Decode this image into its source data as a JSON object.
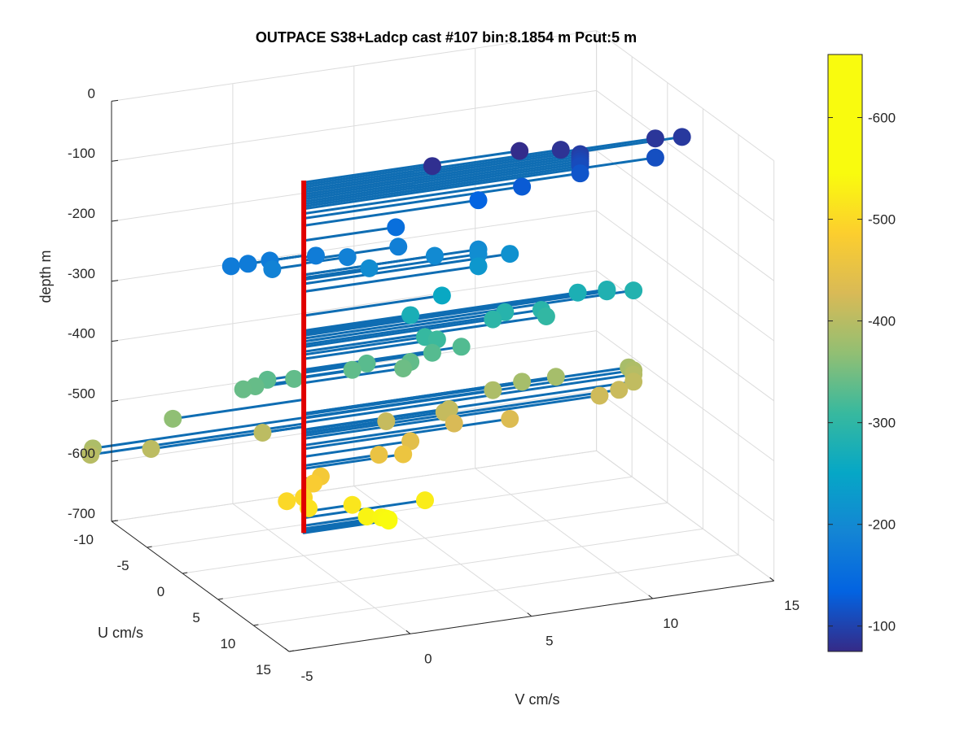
{
  "chart_data": {
    "type": "scatter",
    "title": "OUTPACE S38+Ladcp cast #107 bin:8.1854 m  Pcut:5 m",
    "xlabel": "U cm/s",
    "ylabel": "V cm/s",
    "zlabel": "depth m",
    "xlim": [
      -10,
      15
    ],
    "ylim": [
      -5,
      15
    ],
    "zlim": [
      -700,
      0
    ],
    "u_ticks": [
      "-10",
      "-5",
      "0",
      "5",
      "10",
      "15"
    ],
    "v_ticks": [
      "-5",
      "0",
      "5",
      "10",
      "15"
    ],
    "z_ticks": [
      "0",
      "-100",
      "-200",
      "-300",
      "-400",
      "-500",
      "-600",
      "-700"
    ],
    "colorbar": {
      "ticks": [
        "-100",
        "-200",
        "-300",
        "-400",
        "-500",
        "-600"
      ],
      "range": [
        -662,
        -75
      ]
    },
    "grid": true,
    "profile": {
      "depth_top": -75,
      "depth_bottom": -662,
      "color": "#e00000"
    },
    "vectors": [
      {
        "depth": -78,
        "u": 0,
        "v": 8.9
      },
      {
        "depth": -82,
        "u": 0,
        "v": 5.3
      },
      {
        "depth": -86,
        "u": 0,
        "v": 10.6
      },
      {
        "depth": -90,
        "u": 0,
        "v": 14.5
      },
      {
        "depth": -94,
        "u": 0,
        "v": 15.6
      },
      {
        "depth": -98,
        "u": 0,
        "v": 11.4
      },
      {
        "depth": -102,
        "u": 0,
        "v": 11.4
      },
      {
        "depth": -106,
        "u": 0,
        "v": 11.4
      },
      {
        "depth": -110,
        "u": 0,
        "v": 11.4
      },
      {
        "depth": -114,
        "u": 0,
        "v": 11.4
      },
      {
        "depth": -118,
        "u": 0,
        "v": 11.4
      },
      {
        "depth": -122,
        "u": 0,
        "v": 14.5
      },
      {
        "depth": -130,
        "u": 0,
        "v": 11.4
      },
      {
        "depth": -138,
        "u": 0,
        "v": 9.0
      },
      {
        "depth": -150,
        "u": 0,
        "v": 7.2
      },
      {
        "depth": -175,
        "u": 0,
        "v": 3.8
      },
      {
        "depth": -200,
        "u": 0,
        "v": -3.0
      },
      {
        "depth": -200,
        "u": 0,
        "v": -2.3
      },
      {
        "depth": -200,
        "u": 0,
        "v": -1.4
      },
      {
        "depth": -203,
        "u": 0,
        "v": 0.5
      },
      {
        "depth": -208,
        "u": 0,
        "v": 3.9
      },
      {
        "depth": -213,
        "u": 0,
        "v": 1.8
      },
      {
        "depth": -215,
        "u": 0,
        "v": -1.3
      },
      {
        "depth": -232,
        "u": 0,
        "v": 5.4
      },
      {
        "depth": -232,
        "u": 0,
        "v": 7.2
      },
      {
        "depth": -237,
        "u": 0,
        "v": 2.7
      },
      {
        "depth": -240,
        "u": 0,
        "v": 7.2
      },
      {
        "depth": -247,
        "u": 0,
        "v": 8.5
      },
      {
        "depth": -260,
        "u": 0,
        "v": 7.2
      },
      {
        "depth": -300,
        "u": 0,
        "v": 5.7
      },
      {
        "depth": -325,
        "u": 0,
        "v": 4.4
      },
      {
        "depth": -328,
        "u": 0,
        "v": 11.3
      },
      {
        "depth": -330,
        "u": 0,
        "v": 12.5
      },
      {
        "depth": -333,
        "u": 0,
        "v": 12.5
      },
      {
        "depth": -338,
        "u": 0,
        "v": 13.6
      },
      {
        "depth": -343,
        "u": 0,
        "v": 8.3
      },
      {
        "depth": -348,
        "u": 0,
        "v": 9.8
      },
      {
        "depth": -352,
        "u": 0,
        "v": 7.8
      },
      {
        "depth": -360,
        "u": 0,
        "v": 10.0
      },
      {
        "depth": -365,
        "u": 0,
        "v": 5.0
      },
      {
        "depth": -372,
        "u": 0,
        "v": 5.5
      },
      {
        "depth": -390,
        "u": 0,
        "v": 6.5
      },
      {
        "depth": -393,
        "u": 0,
        "v": 5.3
      },
      {
        "depth": -395,
        "u": 0,
        "v": 2.6
      },
      {
        "depth": -398,
        "u": 0,
        "v": -1.5
      },
      {
        "depth": -402,
        "u": 0,
        "v": 2.0
      },
      {
        "depth": -403,
        "u": 0,
        "v": -0.4
      },
      {
        "depth": -403,
        "u": 0,
        "v": 4.4
      },
      {
        "depth": -406,
        "u": 0,
        "v": -2.0
      },
      {
        "depth": -408,
        "u": 0,
        "v": -2.5
      },
      {
        "depth": -412,
        "u": 0,
        "v": 4.1
      },
      {
        "depth": -440,
        "u": 0,
        "v": -5.4
      },
      {
        "depth": -470,
        "u": 0,
        "v": -8.7
      },
      {
        "depth": -480,
        "u": 0,
        "v": -8.8
      },
      {
        "depth": -485,
        "u": 0,
        "v": -6.3
      },
      {
        "depth": -485,
        "u": 0,
        "v": -1.7
      },
      {
        "depth": -496,
        "u": 0,
        "v": 3.4
      },
      {
        "depth": -491,
        "u": 0,
        "v": 6.0
      },
      {
        "depth": -470,
        "u": 0,
        "v": 7.8
      },
      {
        "depth": -463,
        "u": 0,
        "v": 9.0
      },
      {
        "depth": -463,
        "u": 0,
        "v": 10.4
      },
      {
        "depth": -465,
        "u": 0,
        "v": 13.4
      },
      {
        "depth": -471,
        "u": 0,
        "v": 13.6
      },
      {
        "depth": -478,
        "u": 0,
        "v": 13.6
      },
      {
        "depth": -490,
        "u": 0,
        "v": 13.6
      },
      {
        "depth": -500,
        "u": 0,
        "v": 13.0
      },
      {
        "depth": -505,
        "u": 0,
        "v": 12.2
      },
      {
        "depth": -495,
        "u": 0,
        "v": 5.8
      },
      {
        "depth": -516,
        "u": 0,
        "v": 6.2
      },
      {
        "depth": -522,
        "u": 0,
        "v": 8.5
      },
      {
        "depth": -535,
        "u": 0,
        "v": 4.4
      },
      {
        "depth": -550,
        "u": 0,
        "v": 3.1
      },
      {
        "depth": -555,
        "u": 0,
        "v": 4.1
      },
      {
        "depth": -572,
        "u": 0,
        "v": 0.7
      },
      {
        "depth": -582,
        "u": 0,
        "v": 0.4
      },
      {
        "depth": -603,
        "u": 0,
        "v": 0.0
      },
      {
        "depth": -605,
        "u": 0,
        "v": -0.7
      },
      {
        "depth": -622,
        "u": 0,
        "v": 0.2
      },
      {
        "depth": -627,
        "u": 0,
        "v": 2.0
      },
      {
        "depth": -637,
        "u": 0,
        "v": 5.0
      },
      {
        "depth": -650,
        "u": 0,
        "v": 2.6
      },
      {
        "depth": -655,
        "u": 0,
        "v": 3.2
      },
      {
        "depth": -658,
        "u": 0,
        "v": 3.4
      },
      {
        "depth": -660,
        "u": 0,
        "v": 3.5
      },
      {
        "depth": -662,
        "u": 0,
        "v": 3.5
      }
    ]
  }
}
